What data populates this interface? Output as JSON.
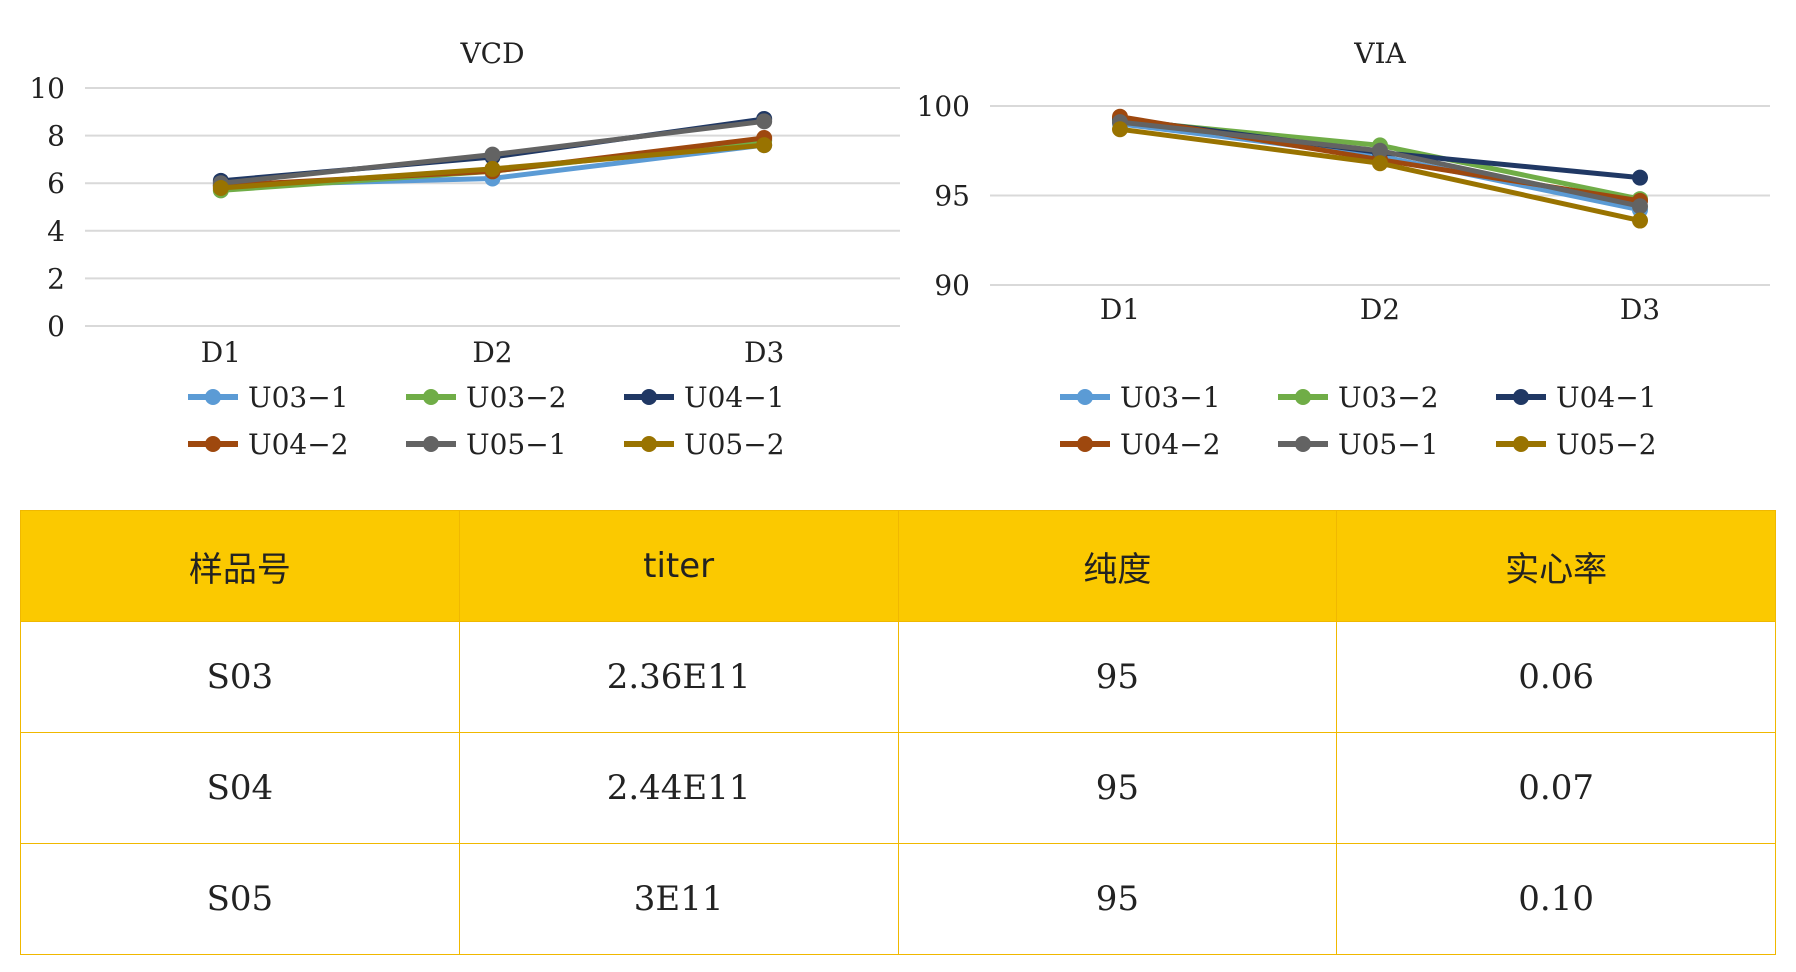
{
  "chart_data": [
    {
      "type": "line",
      "title": "VCD",
      "categories": [
        "D1",
        "D2",
        "D3"
      ],
      "ylim": [
        0,
        10
      ],
      "yticks": [
        0,
        2,
        4,
        6,
        8,
        10
      ],
      "grid": true,
      "legend": "bottom",
      "series": [
        {
          "name": "U03−1",
          "color": "#5b9bd5",
          "values": [
            5.9,
            6.2,
            7.6
          ]
        },
        {
          "name": "U03−2",
          "color": "#70ad47",
          "values": [
            5.7,
            6.5,
            7.8
          ]
        },
        {
          "name": "U04−1",
          "color": "#203864",
          "values": [
            6.1,
            7.1,
            8.7
          ]
        },
        {
          "name": "U04−2",
          "color": "#9e480e",
          "values": [
            5.9,
            6.5,
            7.9
          ]
        },
        {
          "name": "U05−1",
          "color": "#636363",
          "values": [
            6.0,
            7.2,
            8.6
          ]
        },
        {
          "name": "U05−2",
          "color": "#997300",
          "values": [
            5.8,
            6.6,
            7.6
          ]
        }
      ]
    },
    {
      "type": "line",
      "title": "VIA",
      "categories": [
        "D1",
        "D2",
        "D3"
      ],
      "ylim": [
        90,
        100
      ],
      "yticks": [
        90,
        95,
        100
      ],
      "grid": true,
      "legend": "bottom",
      "series": [
        {
          "name": "U03−1",
          "color": "#5b9bd5",
          "values": [
            99.0,
            97.2,
            94.2
          ]
        },
        {
          "name": "U03−2",
          "color": "#70ad47",
          "values": [
            99.2,
            97.8,
            94.8
          ]
        },
        {
          "name": "U04−1",
          "color": "#203864",
          "values": [
            99.3,
            97.4,
            96.0
          ]
        },
        {
          "name": "U04−2",
          "color": "#9e480e",
          "values": [
            99.4,
            97.0,
            94.7
          ]
        },
        {
          "name": "U05−1",
          "color": "#636363",
          "values": [
            99.1,
            97.5,
            94.4
          ]
        },
        {
          "name": "U05−2",
          "color": "#997300",
          "values": [
            98.7,
            96.8,
            93.6
          ]
        }
      ]
    }
  ],
  "table": {
    "headers": [
      "样品号",
      "titer",
      "纯度",
      "实心率"
    ],
    "rows": [
      [
        "S03",
        "2.36E11",
        "95",
        "0.06"
      ],
      [
        "S04",
        "2.44E11",
        "95",
        "0.07"
      ],
      [
        "S05",
        "3E11",
        "95",
        "0.10"
      ]
    ]
  }
}
